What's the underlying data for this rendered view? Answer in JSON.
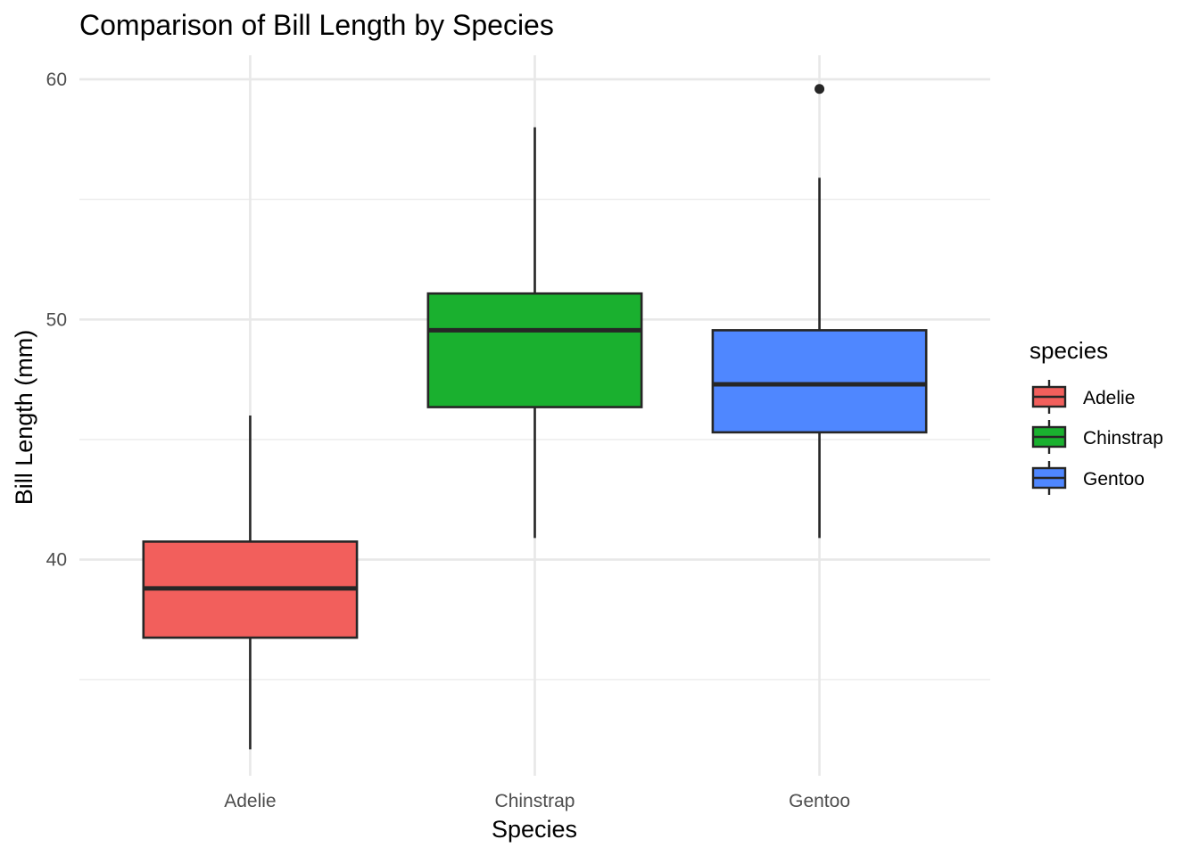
{
  "chart_data": {
    "type": "boxplot",
    "title": "Comparison of Bill Length by Species",
    "xlabel": "Species",
    "ylabel": "Bill Length (mm)",
    "categories": [
      "Adelie",
      "Chinstrap",
      "Gentoo"
    ],
    "ylim": [
      31.0,
      61.0
    ],
    "yticks": [
      40,
      50,
      60
    ],
    "yminor": [
      35,
      45,
      55
    ],
    "grid": true,
    "legend": {
      "title": "species",
      "position": "right"
    },
    "series": [
      {
        "name": "Adelie",
        "color": "#F25F5C",
        "whisker_low": 32.1,
        "q1": 36.75,
        "median": 38.8,
        "q3": 40.75,
        "whisker_high": 46.0,
        "outliers": []
      },
      {
        "name": "Chinstrap",
        "color": "#1AB02F",
        "whisker_low": 40.9,
        "q1": 46.35,
        "median": 49.55,
        "q3": 51.08,
        "whisker_high": 58.0,
        "outliers": []
      },
      {
        "name": "Gentoo",
        "color": "#4F87FF",
        "whisker_low": 40.9,
        "q1": 45.3,
        "median": 47.3,
        "q3": 49.55,
        "whisker_high": 55.9,
        "outliers": [
          59.6
        ]
      }
    ]
  }
}
